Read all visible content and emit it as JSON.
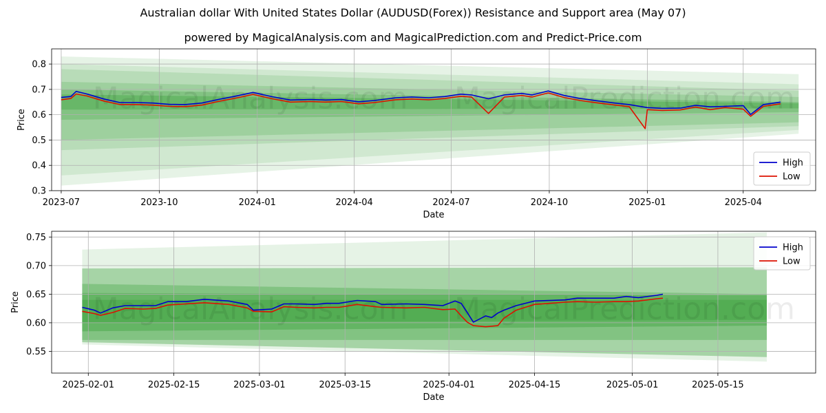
{
  "title": "Australian dollar With United States Dollar (AUDUSD(Forex)) Resistance and Support area (May 07)",
  "subtitle": "powered by MagicalAnalysis.com and MagicalPrediction.com and Predict-Price.com",
  "watermarks": [
    "MagicalAnalysis.com",
    "MagicalPrediction.com"
  ],
  "colors": {
    "high": "#0000cc",
    "low": "#dd1100",
    "band": "#2e9a2e"
  },
  "chart_data": [
    {
      "type": "line",
      "xlabel": "Date",
      "ylabel": "Price",
      "ylim": [
        0.3,
        0.86
      ],
      "xlim": [
        "2023-06-22",
        "2025-06-08"
      ],
      "x_ticks": [
        "2023-07",
        "2023-10",
        "2024-01",
        "2024-04",
        "2024-07",
        "2024-10",
        "2025-01",
        "2025-04"
      ],
      "y_ticks": [
        "0.3",
        "0.4",
        "0.5",
        "0.6",
        "0.7",
        "0.8"
      ],
      "grid": true,
      "legend_position": "lower-right",
      "legend": [
        "High",
        "Low"
      ],
      "bands": [
        {
          "x": [
            "2023-07-01",
            "2025-05-23"
          ],
          "top": [
            0.83,
            0.76
          ],
          "bottom": [
            0.32,
            0.525
          ],
          "alpha": 0.12
        },
        {
          "x": [
            "2023-07-01",
            "2025-05-23"
          ],
          "top": [
            0.8,
            0.72
          ],
          "bottom": [
            0.36,
            0.54
          ],
          "alpha": 0.12
        },
        {
          "x": [
            "2023-07-01",
            "2025-05-23"
          ],
          "top": [
            0.78,
            0.695
          ],
          "bottom": [
            0.46,
            0.555
          ],
          "alpha": 0.15
        },
        {
          "x": [
            "2023-07-01",
            "2025-05-23"
          ],
          "top": [
            0.73,
            0.67
          ],
          "bottom": [
            0.5,
            0.57
          ],
          "alpha": 0.18
        },
        {
          "x": [
            "2023-07-01",
            "2025-05-23"
          ],
          "top": [
            0.7,
            0.65
          ],
          "bottom": [
            0.58,
            0.61
          ],
          "alpha": 0.25
        },
        {
          "x": [
            "2023-07-01",
            "2025-05-23"
          ],
          "top": [
            0.68,
            0.645
          ],
          "bottom": [
            0.62,
            0.625
          ],
          "alpha": 0.3
        }
      ],
      "series": [
        {
          "name": "High",
          "x": [
            "2023-07-01",
            "2023-07-10",
            "2023-07-15",
            "2023-07-25",
            "2023-08-10",
            "2023-08-25",
            "2023-09-10",
            "2023-09-25",
            "2023-10-10",
            "2023-10-25",
            "2023-11-10",
            "2023-11-25",
            "2023-12-10",
            "2023-12-28",
            "2024-01-15",
            "2024-02-01",
            "2024-02-20",
            "2024-03-05",
            "2024-03-20",
            "2024-04-05",
            "2024-04-20",
            "2024-05-10",
            "2024-05-25",
            "2024-06-10",
            "2024-06-25",
            "2024-07-10",
            "2024-07-20",
            "2024-08-05",
            "2024-08-20",
            "2024-09-05",
            "2024-09-15",
            "2024-09-30",
            "2024-10-15",
            "2024-10-30",
            "2024-11-15",
            "2024-11-30",
            "2024-12-15",
            "2025-01-01",
            "2025-01-15",
            "2025-02-01",
            "2025-02-15",
            "2025-03-01",
            "2025-03-15",
            "2025-04-01",
            "2025-04-08",
            "2025-04-20",
            "2025-05-06"
          ],
          "values": [
            0.668,
            0.672,
            0.692,
            0.682,
            0.662,
            0.648,
            0.648,
            0.646,
            0.641,
            0.64,
            0.646,
            0.66,
            0.672,
            0.688,
            0.671,
            0.658,
            0.66,
            0.658,
            0.66,
            0.651,
            0.656,
            0.667,
            0.67,
            0.667,
            0.672,
            0.681,
            0.678,
            0.663,
            0.678,
            0.684,
            0.678,
            0.694,
            0.676,
            0.664,
            0.655,
            0.647,
            0.64,
            0.628,
            0.625,
            0.626,
            0.637,
            0.631,
            0.633,
            0.636,
            0.601,
            0.64,
            0.65
          ]
        },
        {
          "name": "Low",
          "x": [
            "2023-07-01",
            "2023-07-10",
            "2023-07-15",
            "2023-07-25",
            "2023-08-10",
            "2023-08-25",
            "2023-09-10",
            "2023-09-25",
            "2023-10-10",
            "2023-10-25",
            "2023-11-10",
            "2023-11-25",
            "2023-12-10",
            "2023-12-28",
            "2024-01-15",
            "2024-02-01",
            "2024-02-20",
            "2024-03-05",
            "2024-03-20",
            "2024-04-05",
            "2024-04-20",
            "2024-05-10",
            "2024-05-25",
            "2024-06-10",
            "2024-06-25",
            "2024-07-10",
            "2024-07-20",
            "2024-08-05",
            "2024-08-20",
            "2024-09-05",
            "2024-09-15",
            "2024-09-30",
            "2024-10-15",
            "2024-10-30",
            "2024-11-15",
            "2024-11-30",
            "2024-12-15",
            "2024-12-30",
            "2025-01-01",
            "2025-01-15",
            "2025-02-01",
            "2025-02-15",
            "2025-03-01",
            "2025-03-15",
            "2025-04-01",
            "2025-04-08",
            "2025-04-20",
            "2025-05-06"
          ],
          "values": [
            0.659,
            0.664,
            0.682,
            0.674,
            0.654,
            0.64,
            0.64,
            0.638,
            0.633,
            0.632,
            0.638,
            0.652,
            0.664,
            0.68,
            0.663,
            0.65,
            0.652,
            0.65,
            0.652,
            0.643,
            0.648,
            0.659,
            0.662,
            0.659,
            0.664,
            0.673,
            0.67,
            0.605,
            0.67,
            0.676,
            0.67,
            0.686,
            0.668,
            0.656,
            0.647,
            0.639,
            0.632,
            0.545,
            0.62,
            0.617,
            0.619,
            0.63,
            0.62,
            0.628,
            0.622,
            0.594,
            0.633,
            0.643
          ]
        }
      ]
    },
    {
      "type": "line",
      "xlabel": "Date",
      "ylabel": "Price",
      "ylim": [
        0.512,
        0.76
      ],
      "xlim": [
        "2025-01-26",
        "2025-05-31"
      ],
      "x_ticks": [
        "2025-02-01",
        "2025-02-15",
        "2025-03-01",
        "2025-03-15",
        "2025-04-01",
        "2025-04-15",
        "2025-05-01",
        "2025-05-15"
      ],
      "y_ticks": [
        "0.55",
        "0.60",
        "0.65",
        "0.70",
        "0.75"
      ],
      "grid": true,
      "legend_position": "upper-right",
      "legend": [
        "High",
        "Low"
      ],
      "bands": [
        {
          "x": [
            "2025-01-31",
            "2025-05-23"
          ],
          "top": [
            0.728,
            0.758
          ],
          "bottom": [
            0.562,
            0.532
          ],
          "alpha": 0.12
        },
        {
          "x": [
            "2025-01-31",
            "2025-05-23"
          ],
          "top": [
            0.695,
            0.697
          ],
          "bottom": [
            0.566,
            0.54
          ],
          "alpha": 0.35
        },
        {
          "x": [
            "2025-01-31",
            "2025-05-23"
          ],
          "top": [
            0.668,
            0.65
          ],
          "bottom": [
            0.57,
            0.57
          ],
          "alpha": 0.3
        },
        {
          "x": [
            "2025-01-31",
            "2025-05-23"
          ],
          "top": [
            0.652,
            0.648
          ],
          "bottom": [
            0.585,
            0.595
          ],
          "alpha": 0.35
        },
        {
          "x": [
            "2025-01-31",
            "2025-05-23"
          ],
          "top": [
            0.64,
            0.64
          ],
          "bottom": [
            0.6,
            0.605
          ],
          "alpha": 0.3
        }
      ],
      "series": [
        {
          "name": "High",
          "x": [
            "2025-01-31",
            "2025-02-02",
            "2025-02-03",
            "2025-02-05",
            "2025-02-07",
            "2025-02-10",
            "2025-02-12",
            "2025-02-14",
            "2025-02-17",
            "2025-02-20",
            "2025-02-24",
            "2025-02-27",
            "2025-02-28",
            "2025-03-03",
            "2025-03-05",
            "2025-03-07",
            "2025-03-10",
            "2025-03-12",
            "2025-03-14",
            "2025-03-17",
            "2025-03-20",
            "2025-03-21",
            "2025-03-25",
            "2025-03-28",
            "2025-03-31",
            "2025-04-02",
            "2025-04-03",
            "2025-04-04",
            "2025-04-05",
            "2025-04-07",
            "2025-04-08",
            "2025-04-09",
            "2025-04-10",
            "2025-04-12",
            "2025-04-15",
            "2025-04-20",
            "2025-04-22",
            "2025-04-25",
            "2025-04-28",
            "2025-04-30",
            "2025-05-02",
            "2025-05-05",
            "2025-05-06"
          ],
          "values": [
            0.627,
            0.622,
            0.617,
            0.626,
            0.63,
            0.63,
            0.63,
            0.637,
            0.637,
            0.641,
            0.638,
            0.632,
            0.622,
            0.624,
            0.633,
            0.633,
            0.632,
            0.634,
            0.634,
            0.639,
            0.637,
            0.632,
            0.633,
            0.632,
            0.63,
            0.638,
            0.634,
            0.618,
            0.601,
            0.612,
            0.609,
            0.617,
            0.622,
            0.63,
            0.638,
            0.64,
            0.643,
            0.643,
            0.643,
            0.646,
            0.644,
            0.648,
            0.65
          ]
        },
        {
          "name": "Low",
          "x": [
            "2025-01-31",
            "2025-02-02",
            "2025-02-03",
            "2025-02-05",
            "2025-02-07",
            "2025-02-10",
            "2025-02-12",
            "2025-02-14",
            "2025-02-17",
            "2025-02-20",
            "2025-02-24",
            "2025-02-27",
            "2025-02-28",
            "2025-03-03",
            "2025-03-05",
            "2025-03-07",
            "2025-03-10",
            "2025-03-12",
            "2025-03-14",
            "2025-03-17",
            "2025-03-20",
            "2025-03-21",
            "2025-03-25",
            "2025-03-28",
            "2025-03-31",
            "2025-04-02",
            "2025-04-03",
            "2025-04-04",
            "2025-04-05",
            "2025-04-07",
            "2025-04-08",
            "2025-04-09",
            "2025-04-10",
            "2025-04-12",
            "2025-04-15",
            "2025-04-20",
            "2025-04-22",
            "2025-04-25",
            "2025-04-28",
            "2025-04-30",
            "2025-05-02",
            "2025-05-05",
            "2025-05-06"
          ],
          "values": [
            0.62,
            0.616,
            0.613,
            0.618,
            0.625,
            0.624,
            0.625,
            0.631,
            0.633,
            0.635,
            0.632,
            0.626,
            0.62,
            0.619,
            0.628,
            0.627,
            0.626,
            0.627,
            0.627,
            0.632,
            0.628,
            0.627,
            0.626,
            0.627,
            0.623,
            0.624,
            0.612,
            0.601,
            0.595,
            0.593,
            0.594,
            0.595,
            0.608,
            0.622,
            0.632,
            0.636,
            0.637,
            0.636,
            0.637,
            0.637,
            0.638,
            0.642,
            0.643
          ]
        }
      ]
    }
  ]
}
